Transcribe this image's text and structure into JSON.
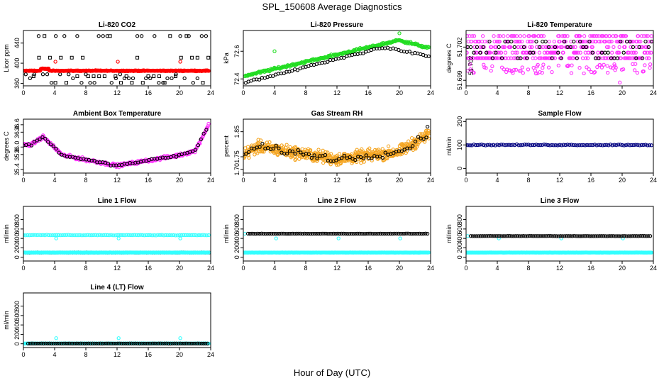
{
  "title": "SPL_150608  Average Diagnostics",
  "xlabel": "Hour of Day (UTC)",
  "colors": {
    "black": "#000000",
    "red": "#ff0000",
    "green": "#22dd22",
    "magenta": "#ff33ff",
    "orange": "#f5a623",
    "navy": "#000080",
    "cyan": "#33ffff"
  },
  "chart_data": [
    {
      "type": "scatter",
      "title": "Li-820 CO2",
      "ylabel": "Licor ppm",
      "xlim": [
        0,
        24
      ],
      "ylim": [
        355,
        465
      ],
      "xticks": [
        "0",
        "4",
        "8",
        "12",
        "16",
        "20",
        "24"
      ],
      "yticks": [
        {
          "v": 360,
          "label": "360"
        },
        {
          "v": 400,
          "label": "400"
        },
        {
          "v": 440,
          "label": "440"
        }
      ],
      "series": [
        {
          "color": "#000000",
          "marker": "o",
          "pattern": "co2_black"
        },
        {
          "color": "#000000",
          "marker": "s",
          "pattern": "co2_square"
        },
        {
          "color": "#ff0000",
          "marker": "o",
          "pattern": "co2_red"
        }
      ]
    },
    {
      "type": "scatter",
      "title": "Li-820 Pressure",
      "ylabel": "kPa",
      "xlim": [
        0,
        24
      ],
      "ylim": [
        72.35,
        72.75
      ],
      "xticks": [
        "0",
        "4",
        "8",
        "12",
        "16",
        "20",
        "24"
      ],
      "yticks": [
        {
          "v": 72.4,
          "label": "72.4"
        },
        {
          "v": 72.6,
          "label": "72.6"
        }
      ],
      "series": [
        {
          "color": "#22dd22",
          "marker": "o",
          "pattern": "pressure_green"
        },
        {
          "color": "#000000",
          "marker": "o",
          "pattern": "pressure_black"
        }
      ]
    },
    {
      "type": "scatter",
      "title": "Li-820 Temperature",
      "ylabel": "degrees C",
      "xlim": [
        0,
        24
      ],
      "ylim": [
        51.6985,
        51.7035
      ],
      "xticks": [
        "0",
        "4",
        "8",
        "12",
        "16",
        "20",
        "24"
      ],
      "yticks": [
        {
          "v": 51.699,
          "label": "51.699"
        },
        {
          "v": 51.702,
          "label": "51.702"
        }
      ],
      "extra_ytick_labels": [
        "51.702"
      ],
      "series": [
        {
          "color": "#ff33ff",
          "marker": "o",
          "pattern": "temp_magenta"
        },
        {
          "color": "#000000",
          "marker": "o",
          "pattern": "temp_black"
        }
      ]
    },
    {
      "type": "scatter",
      "title": "Ambient Box Temperature",
      "ylabel": "degrees C",
      "xlim": [
        0,
        24
      ],
      "ylim": [
        35.3,
        36.75
      ],
      "xticks": [
        "0",
        "4",
        "8",
        "12",
        "16",
        "20",
        "24"
      ],
      "yticks": [
        {
          "v": 35.4,
          "label": "35.4"
        },
        {
          "v": 35.8,
          "label": "35.8"
        },
        {
          "v": 36.0,
          "label": "36.0"
        },
        {
          "v": 36.4,
          "label": "36.4"
        },
        {
          "v": 36.6,
          "label": "36.6"
        }
      ],
      "series": [
        {
          "color": "#ff33ff",
          "marker": "o",
          "pattern": "ambient_magenta"
        },
        {
          "color": "#000000",
          "marker": "o",
          "pattern": "ambient_black"
        }
      ]
    },
    {
      "type": "scatter",
      "title": "Gas Stream RH",
      "ylabel": "percent",
      "xlim": [
        0,
        24
      ],
      "ylim": [
        1.685,
        1.9
      ],
      "xticks": [
        "0",
        "4",
        "8",
        "12",
        "16",
        "20",
        "24"
      ],
      "yticks": [
        {
          "v": 1.7,
          "label": "1.70"
        },
        {
          "v": 1.75,
          "label": "1.75"
        },
        {
          "v": 1.85,
          "label": "1.85"
        }
      ],
      "series": [
        {
          "color": "#f5a623",
          "marker": "o",
          "pattern": "rh_orange"
        },
        {
          "color": "#000000",
          "marker": "o",
          "pattern": "rh_black"
        }
      ]
    },
    {
      "type": "scatter",
      "title": "Sample Flow",
      "ylabel": "ml/min",
      "xlim": [
        0,
        24
      ],
      "ylim": [
        -20,
        210
      ],
      "xticks": [
        "0",
        "4",
        "8",
        "12",
        "16",
        "20",
        "24"
      ],
      "yticks": [
        {
          "v": 0,
          "label": "0"
        },
        {
          "v": 100,
          "label": "100"
        },
        {
          "v": 200,
          "label": "200"
        }
      ],
      "series": [
        {
          "color": "#000080",
          "marker": "o",
          "pattern": "flat",
          "value": 100,
          "jitter": 3
        }
      ]
    },
    {
      "type": "scatter",
      "title": "Line 1 Flow",
      "ylabel": "ml/min",
      "xlim": [
        0,
        24
      ],
      "ylim": [
        -80,
        1080
      ],
      "xticks": [
        "0",
        "4",
        "8",
        "12",
        "16",
        "20",
        "24"
      ],
      "yticks": [
        {
          "v": 0,
          "label": "0"
        },
        {
          "v": 200,
          "label": "200"
        },
        {
          "v": 400,
          "label": "400"
        },
        {
          "v": 600,
          "label": "600"
        },
        {
          "v": 800,
          "label": "800"
        }
      ],
      "series": [
        {
          "color": "#33ffff",
          "marker": "o",
          "pattern": "flat",
          "value": 470,
          "jitter": 8,
          "spikes": [
            {
              "x": 4.2,
              "v": 400
            },
            {
              "x": 12.2,
              "v": 400
            },
            {
              "x": 20.1,
              "v": 400
            }
          ]
        },
        {
          "color": "#000000",
          "marker": "o",
          "pattern": "flat",
          "value": 100,
          "jitter": 3,
          "start": 0.3
        },
        {
          "color": "#33ffff",
          "marker": "o",
          "pattern": "flat",
          "value": 100,
          "jitter": 3,
          "dense": true
        }
      ]
    },
    {
      "type": "scatter",
      "title": "Line 2 Flow",
      "ylabel": "ml/min",
      "xlim": [
        0,
        24
      ],
      "ylim": [
        -80,
        1080
      ],
      "xticks": [
        "0",
        "4",
        "8",
        "12",
        "16",
        "20",
        "24"
      ],
      "yticks": [
        {
          "v": 0,
          "label": "0"
        },
        {
          "v": 200,
          "label": "200"
        },
        {
          "v": 400,
          "label": "400"
        },
        {
          "v": 600,
          "label": "600"
        },
        {
          "v": 800,
          "label": "800"
        }
      ],
      "series": [
        {
          "color": "#33ffff",
          "marker": "o",
          "pattern": "flat",
          "value": 100,
          "jitter": 3,
          "dense": true,
          "spikes": [
            {
              "x": 0.2,
              "v": 500
            },
            {
              "x": 4.2,
              "v": 400
            },
            {
              "x": 12.2,
              "v": 400
            },
            {
              "x": 20.1,
              "v": 400
            }
          ]
        },
        {
          "color": "#000000",
          "marker": "o",
          "pattern": "flat",
          "value": 500,
          "jitter": 4,
          "start": 0.6
        }
      ]
    },
    {
      "type": "scatter",
      "title": "Line 3 Flow",
      "ylabel": "ml/min",
      "xlim": [
        0,
        24
      ],
      "ylim": [
        -80,
        1080
      ],
      "xticks": [
        "0",
        "4",
        "8",
        "12",
        "16",
        "20",
        "24"
      ],
      "yticks": [
        {
          "v": 0,
          "label": "0"
        },
        {
          "v": 200,
          "label": "200"
        },
        {
          "v": 400,
          "label": "400"
        },
        {
          "v": 600,
          "label": "600"
        },
        {
          "v": 800,
          "label": "800"
        }
      ],
      "series": [
        {
          "color": "#33ffff",
          "marker": "o",
          "pattern": "flat",
          "value": 100,
          "jitter": 3,
          "dense": true,
          "spikes": [
            {
              "x": 0.2,
              "v": 450
            },
            {
              "x": 4.2,
              "v": 400
            },
            {
              "x": 12.2,
              "v": 400
            },
            {
              "x": 20.1,
              "v": 400
            }
          ]
        },
        {
          "color": "#000000",
          "marker": "o",
          "pattern": "flat",
          "value": 450,
          "jitter": 4,
          "start": 0.6
        }
      ]
    },
    {
      "type": "scatter",
      "title": "Line 4 (LT) Flow",
      "ylabel": "ml/min",
      "xlim": [
        0,
        24
      ],
      "ylim": [
        -80,
        1080
      ],
      "xticks": [
        "0",
        "4",
        "8",
        "12",
        "16",
        "20",
        "24"
      ],
      "yticks": [
        {
          "v": 0,
          "label": "0"
        },
        {
          "v": 200,
          "label": "200"
        },
        {
          "v": 400,
          "label": "400"
        },
        {
          "v": 600,
          "label": "600"
        },
        {
          "v": 800,
          "label": "800"
        }
      ],
      "series": [
        {
          "color": "#33ffff",
          "marker": "o",
          "pattern": "flat",
          "value": 5,
          "jitter": 2,
          "dense": true,
          "spikes": [
            {
              "x": 4.2,
              "v": 120
            },
            {
              "x": 12.2,
              "v": 120
            },
            {
              "x": 20.1,
              "v": 120
            }
          ]
        },
        {
          "color": "#000000",
          "marker": "o",
          "pattern": "flat",
          "value": 5,
          "jitter": 2,
          "start": 0.6
        }
      ]
    }
  ]
}
